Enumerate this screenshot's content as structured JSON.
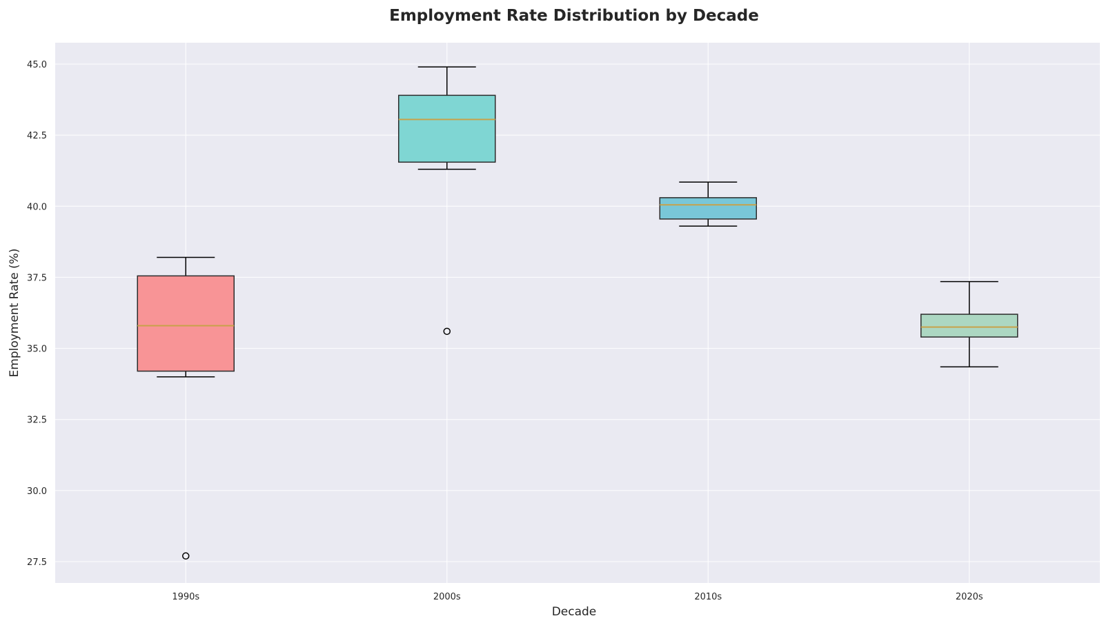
{
  "chart_data": {
    "type": "box",
    "title": "Employment Rate Distribution by Decade",
    "xlabel": "Decade",
    "ylabel": "Employment Rate (%)",
    "ylim": [
      26.75,
      45.75
    ],
    "yticks": [
      "27.5",
      "30.0",
      "32.5",
      "35.0",
      "37.5",
      "40.0",
      "42.5",
      "45.0"
    ],
    "grid": true,
    "colors": {
      "background": "#eaeaf2",
      "grid": "#ffffff",
      "median": "#c8a24a",
      "edge": "#2b2b2b"
    },
    "categories": [
      "1990s",
      "2000s",
      "2010s",
      "2020s"
    ],
    "boxes": [
      {
        "category": "1990s",
        "whisker_low": 34.0,
        "q1": 34.2,
        "median": 35.8,
        "q3": 37.55,
        "whisker_high": 38.2,
        "outliers": [
          27.7
        ],
        "color": "#f89496"
      },
      {
        "category": "2000s",
        "whisker_low": 41.3,
        "q1": 41.55,
        "median": 43.05,
        "q3": 43.9,
        "whisker_high": 44.9,
        "outliers": [
          35.6
        ],
        "color": "#7fd6d3"
      },
      {
        "category": "2010s",
        "whisker_low": 39.3,
        "q1": 39.55,
        "median": 40.05,
        "q3": 40.3,
        "whisker_high": 40.85,
        "outliers": [],
        "color": "#79c7d8"
      },
      {
        "category": "2020s",
        "whisker_low": 34.35,
        "q1": 35.4,
        "median": 35.75,
        "q3": 36.2,
        "whisker_high": 37.35,
        "outliers": [],
        "color": "#acd7c2"
      }
    ]
  }
}
